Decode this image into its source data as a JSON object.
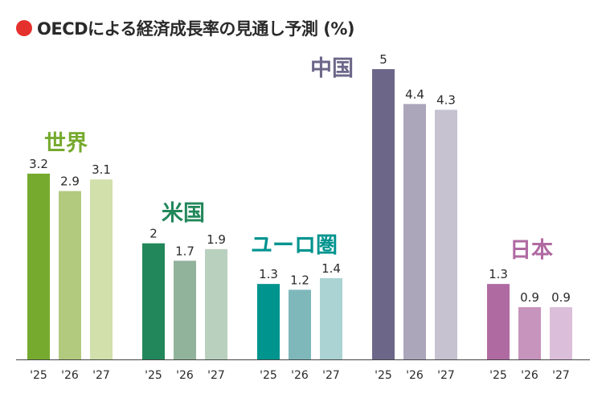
{
  "chart_data": {
    "type": "bar",
    "title": "OECDによる経済成長率の見通し予測 (%)",
    "title_marker_color": "#e5312d",
    "categories": [
      "'25",
      "'26",
      "'27"
    ],
    "ylim": [
      0,
      5
    ],
    "grid": false,
    "series": [
      {
        "name": "世界",
        "values": [
          3.2,
          2.9,
          3.1
        ],
        "value_labels": [
          "3.2",
          "2.9",
          "3.1"
        ],
        "label_color": "#76aa2e",
        "colors": [
          "#76aa2e",
          "#b2ca7e",
          "#d2e0ab"
        ]
      },
      {
        "name": "米国",
        "values": [
          2,
          1.7,
          1.9
        ],
        "value_labels": [
          "2",
          "1.7",
          "1.9"
        ],
        "label_color": "#22875a",
        "colors": [
          "#22875a",
          "#92b39b",
          "#b9d0bf"
        ]
      },
      {
        "name": "ユーロ圏",
        "values": [
          1.3,
          1.2,
          1.4
        ],
        "value_labels": [
          "1.3",
          "1.2",
          "1.4"
        ],
        "label_color": "#00948f",
        "colors": [
          "#00948f",
          "#7fb8bb",
          "#abd3d3"
        ]
      },
      {
        "name": "中国",
        "values": [
          5,
          4.4,
          4.3
        ],
        "value_labels": [
          "5",
          "4.4",
          "4.3"
        ],
        "label_color": "#6c6789",
        "colors": [
          "#6c6789",
          "#aca6bb",
          "#c6c2d0"
        ]
      },
      {
        "name": "日本",
        "values": [
          1.3,
          0.9,
          0.9
        ],
        "value_labels": [
          "1.3",
          "0.9",
          "0.9"
        ],
        "label_color": "#b06aa2",
        "colors": [
          "#b06aa2",
          "#c694bd",
          "#dbbfda"
        ]
      }
    ]
  }
}
